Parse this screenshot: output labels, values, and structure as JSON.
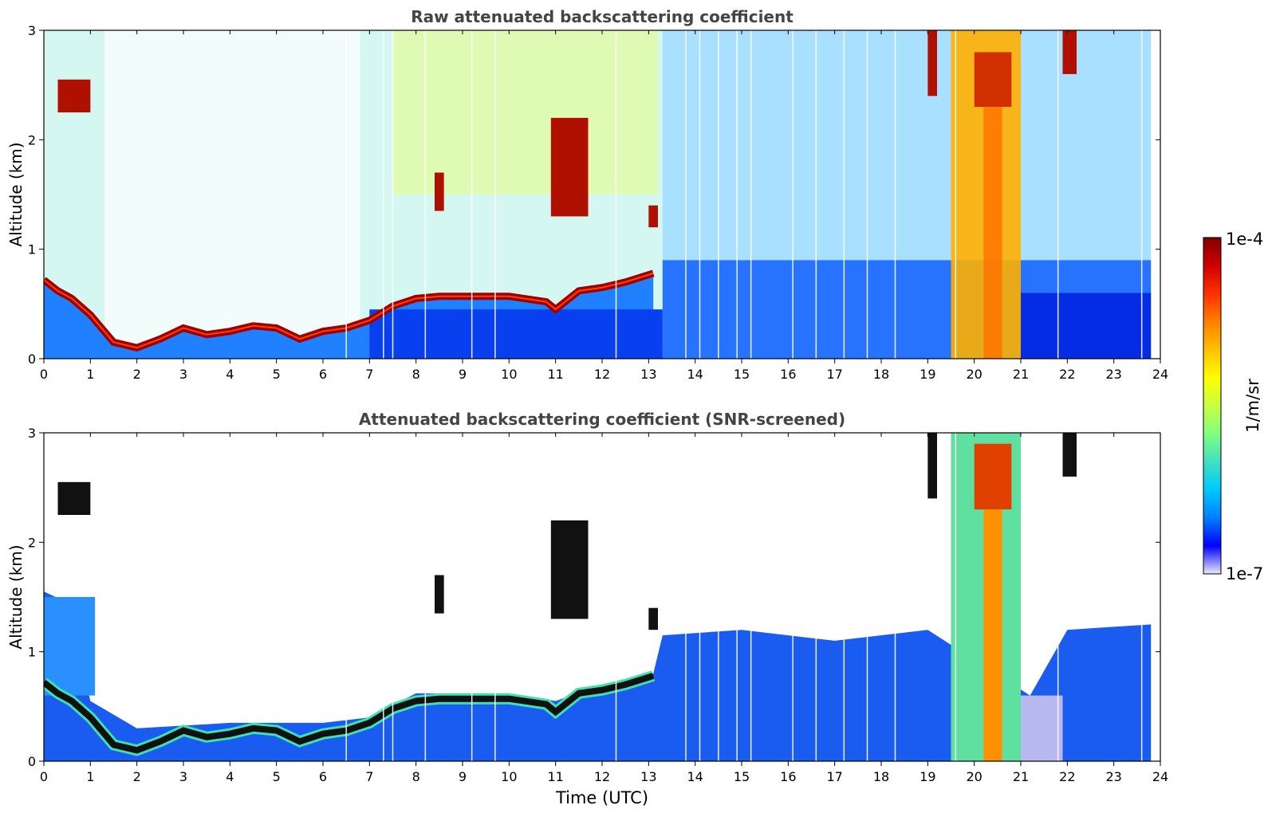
{
  "chart_data": [
    {
      "type": "heatmap",
      "title": "Raw attenuated backscattering coefficient",
      "xlabel": "",
      "ylabel": "Altitude (km)",
      "xlim": [
        0,
        24
      ],
      "ylim": [
        0,
        3
      ],
      "x_ticks": [
        "0",
        "1",
        "2",
        "3",
        "4",
        "5",
        "6",
        "7",
        "8",
        "9",
        "10",
        "11",
        "12",
        "13",
        "14",
        "15",
        "16",
        "17",
        "18",
        "19",
        "20",
        "21",
        "22",
        "23",
        "24"
      ],
      "y_ticks": [
        "0",
        "1",
        "2",
        "3"
      ],
      "boundary_layer_top_km": [
        [
          0.0,
          0.72
        ],
        [
          0.3,
          0.62
        ],
        [
          0.6,
          0.55
        ],
        [
          1.0,
          0.4
        ],
        [
          1.5,
          0.15
        ],
        [
          2.0,
          0.1
        ],
        [
          2.5,
          0.18
        ],
        [
          3.0,
          0.28
        ],
        [
          3.5,
          0.22
        ],
        [
          4.0,
          0.25
        ],
        [
          4.5,
          0.3
        ],
        [
          5.0,
          0.28
        ],
        [
          5.5,
          0.18
        ],
        [
          6.0,
          0.25
        ],
        [
          6.5,
          0.28
        ],
        [
          7.0,
          0.35
        ],
        [
          7.5,
          0.48
        ],
        [
          8.0,
          0.55
        ],
        [
          8.5,
          0.57
        ],
        [
          9.0,
          0.57
        ],
        [
          10.0,
          0.57
        ],
        [
          10.8,
          0.52
        ],
        [
          11.0,
          0.45
        ],
        [
          11.5,
          0.62
        ],
        [
          12.0,
          0.65
        ],
        [
          12.5,
          0.7
        ],
        [
          13.1,
          0.78
        ]
      ],
      "cloud_features": [
        {
          "t0": 0.3,
          "t1": 1.0,
          "alt_km": [
            2.25,
            2.55
          ]
        },
        {
          "t0": 8.4,
          "t1": 8.6,
          "alt_km": [
            1.35,
            1.7
          ]
        },
        {
          "t0": 10.9,
          "t1": 11.7,
          "alt_km": [
            1.3,
            2.2
          ]
        },
        {
          "t0": 13.0,
          "t1": 13.2,
          "alt_km": [
            1.2,
            1.4
          ]
        },
        {
          "t0": 19.0,
          "t1": 19.2,
          "alt_km": [
            2.4,
            3.0
          ]
        },
        {
          "t0": 19.5,
          "t1": 21.0,
          "alt_km": [
            0.0,
            3.0
          ]
        },
        {
          "t0": 21.9,
          "t1": 22.2,
          "alt_km": [
            2.6,
            3.0
          ]
        }
      ]
    },
    {
      "type": "heatmap",
      "title": "Attenuated backscattering coefficient (SNR-screened)",
      "xlabel": "Time (UTC)",
      "ylabel": "Altitude (km)",
      "xlim": [
        0,
        24
      ],
      "ylim": [
        0,
        3
      ],
      "x_ticks": [
        "0",
        "1",
        "2",
        "3",
        "4",
        "5",
        "6",
        "7",
        "8",
        "9",
        "10",
        "11",
        "12",
        "13",
        "14",
        "15",
        "16",
        "17",
        "18",
        "19",
        "20",
        "21",
        "22",
        "23",
        "24"
      ],
      "y_ticks": [
        "0",
        "1",
        "2",
        "3"
      ],
      "screened_signal_top_km": [
        [
          0.0,
          1.55
        ],
        [
          0.5,
          1.45
        ],
        [
          1.0,
          0.55
        ],
        [
          2.0,
          0.3
        ],
        [
          4.0,
          0.35
        ],
        [
          6.0,
          0.35
        ],
        [
          7.0,
          0.4
        ],
        [
          8.0,
          0.62
        ],
        [
          10.0,
          0.62
        ],
        [
          11.0,
          0.55
        ],
        [
          12.0,
          0.7
        ],
        [
          13.1,
          0.8
        ],
        [
          13.3,
          1.15
        ],
        [
          15.0,
          1.2
        ],
        [
          17.0,
          1.1
        ],
        [
          19.0,
          1.2
        ],
        [
          21.2,
          0.6
        ],
        [
          22.0,
          1.2
        ],
        [
          23.8,
          1.25
        ]
      ]
    }
  ],
  "colorbar": {
    "label": "1/m/sr",
    "max_label": "1e-4",
    "min_label": "1e-7",
    "scale": "log",
    "colors": [
      "#e8e8f8",
      "#0000ff",
      "#0080ff",
      "#00c8ff",
      "#40e0c0",
      "#80ff80",
      "#c8ff40",
      "#ffff00",
      "#ffc000",
      "#ff8000",
      "#ff3000",
      "#d00000",
      "#800000"
    ]
  }
}
